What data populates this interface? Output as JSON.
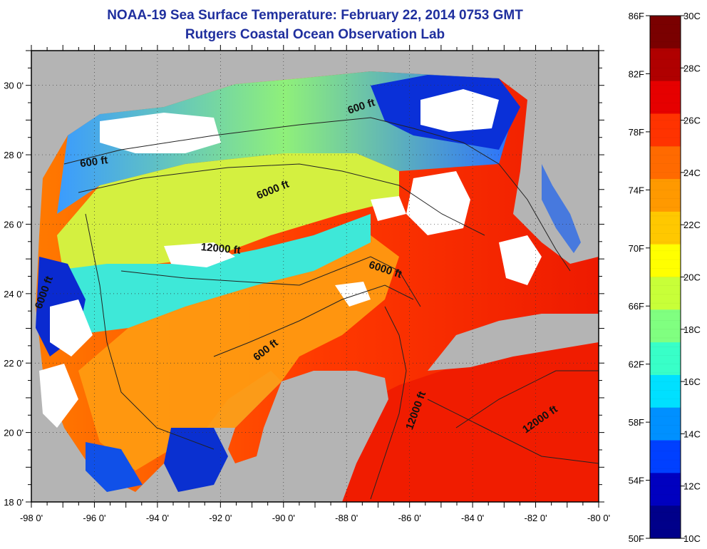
{
  "title": "NOAA-19 Sea Surface Temperature:  February 22, 2014 0753 GMT",
  "subtitle": "Rutgers Coastal Ocean Observation Lab",
  "map": {
    "lon_range": [
      -98,
      -80
    ],
    "lat_range": [
      18,
      31
    ],
    "lon_ticks": [
      "-98 0'",
      "-96 0'",
      "-94 0'",
      "-92 0'",
      "-90 0'",
      "-88 0'",
      "-86 0'",
      "-84 0'",
      "-82 0'",
      "-80 0'"
    ],
    "lat_ticks": [
      "18 0'",
      "20 0'",
      "22 0'",
      "24 0'",
      "26 0'",
      "28 0'",
      "30 0'"
    ],
    "land_color": "#b4b4b4",
    "cloud_color": "#ffffff",
    "contour_labels": [
      {
        "text": "600 ft",
        "lon": -87.5,
        "lat": 29.3,
        "angle": -18
      },
      {
        "text": "600 ft",
        "lon": -96.0,
        "lat": 27.7,
        "angle": -8
      },
      {
        "text": "6000 ft",
        "lon": -90.3,
        "lat": 26.9,
        "angle": -22
      },
      {
        "text": "12000 ft",
        "lon": -92.0,
        "lat": 25.2,
        "angle": 5
      },
      {
        "text": "6000 ft",
        "lon": -86.8,
        "lat": 24.6,
        "angle": 18
      },
      {
        "text": "6000 ft",
        "lon": -97.5,
        "lat": 24.0,
        "angle": -70
      },
      {
        "text": "600 ft",
        "lon": -90.5,
        "lat": 22.3,
        "angle": -38
      },
      {
        "text": "12000 ft",
        "lon": -85.7,
        "lat": 20.6,
        "angle": -70
      },
      {
        "text": "12000 ft",
        "lon": -81.8,
        "lat": 20.3,
        "angle": -35
      }
    ]
  },
  "colorbar": {
    "fahrenheit_labels": [
      "86F",
      "82F",
      "78F",
      "74F",
      "70F",
      "66F",
      "62F",
      "58F",
      "54F",
      "50F"
    ],
    "celsius_labels": [
      "30C",
      "28C",
      "26C",
      "24C",
      "22C",
      "20C",
      "18C",
      "16C",
      "14C",
      "12C",
      "10C"
    ],
    "colors_top_to_bottom": [
      "#7a0000",
      "#b00000",
      "#e60000",
      "#ff3300",
      "#ff6a00",
      "#ff9900",
      "#ffc800",
      "#ffff00",
      "#c8ff38",
      "#80ff80",
      "#38ffc8",
      "#00e0ff",
      "#0090ff",
      "#0040ff",
      "#0000c0",
      "#00008a"
    ]
  }
}
